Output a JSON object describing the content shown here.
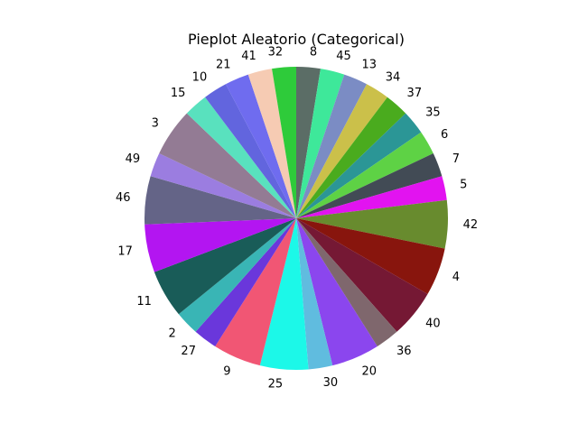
{
  "chart_data": {
    "type": "pie",
    "title": "Pieplot Aleatorio (Categorical)",
    "start_angle_deg": 90,
    "direction": "clockwise",
    "slices": [
      {
        "label": "8",
        "value": 1.8,
        "color": "#5b6d66"
      },
      {
        "label": "45",
        "value": 1.8,
        "color": "#3ee89a"
      },
      {
        "label": "13",
        "value": 1.8,
        "color": "#7b8cc4"
      },
      {
        "label": "34",
        "value": 1.8,
        "color": "#cbc04a"
      },
      {
        "label": "37",
        "value": 1.8,
        "color": "#4aab1e"
      },
      {
        "label": "35",
        "value": 1.8,
        "color": "#2b9696"
      },
      {
        "label": "6",
        "value": 1.8,
        "color": "#5ed245"
      },
      {
        "label": "7",
        "value": 1.8,
        "color": "#424b55"
      },
      {
        "label": "5",
        "value": 1.8,
        "color": "#e213f0"
      },
      {
        "label": "42",
        "value": 3.6,
        "color": "#688b2e"
      },
      {
        "label": "4",
        "value": 3.6,
        "color": "#88150d"
      },
      {
        "label": "40",
        "value": 3.6,
        "color": "#751834"
      },
      {
        "label": "36",
        "value": 1.8,
        "color": "#7f676d"
      },
      {
        "label": "20",
        "value": 3.6,
        "color": "#8b46ee"
      },
      {
        "label": "30",
        "value": 1.8,
        "color": "#60bcdf"
      },
      {
        "label": "25",
        "value": 3.6,
        "color": "#1cf8e8"
      },
      {
        "label": "9",
        "value": 3.6,
        "color": "#f15674"
      },
      {
        "label": "27",
        "value": 1.8,
        "color": "#6a37db"
      },
      {
        "label": "2",
        "value": 1.8,
        "color": "#39b5b5"
      },
      {
        "label": "11",
        "value": 3.6,
        "color": "#195c58"
      },
      {
        "label": "17",
        "value": 3.6,
        "color": "#b315f1"
      },
      {
        "label": "46",
        "value": 3.6,
        "color": "#646487"
      },
      {
        "label": "49",
        "value": 1.8,
        "color": "#9b7de0"
      },
      {
        "label": "3",
        "value": 3.6,
        "color": "#937b94"
      },
      {
        "label": "15",
        "value": 1.8,
        "color": "#59e1be"
      },
      {
        "label": "10",
        "value": 1.8,
        "color": "#6265de"
      },
      {
        "label": "21",
        "value": 1.8,
        "color": "#6f6cef"
      },
      {
        "label": "41",
        "value": 1.8,
        "color": "#f6cbb3"
      },
      {
        "label": "32",
        "value": 1.8,
        "color": "#2ecb3a"
      }
    ]
  }
}
